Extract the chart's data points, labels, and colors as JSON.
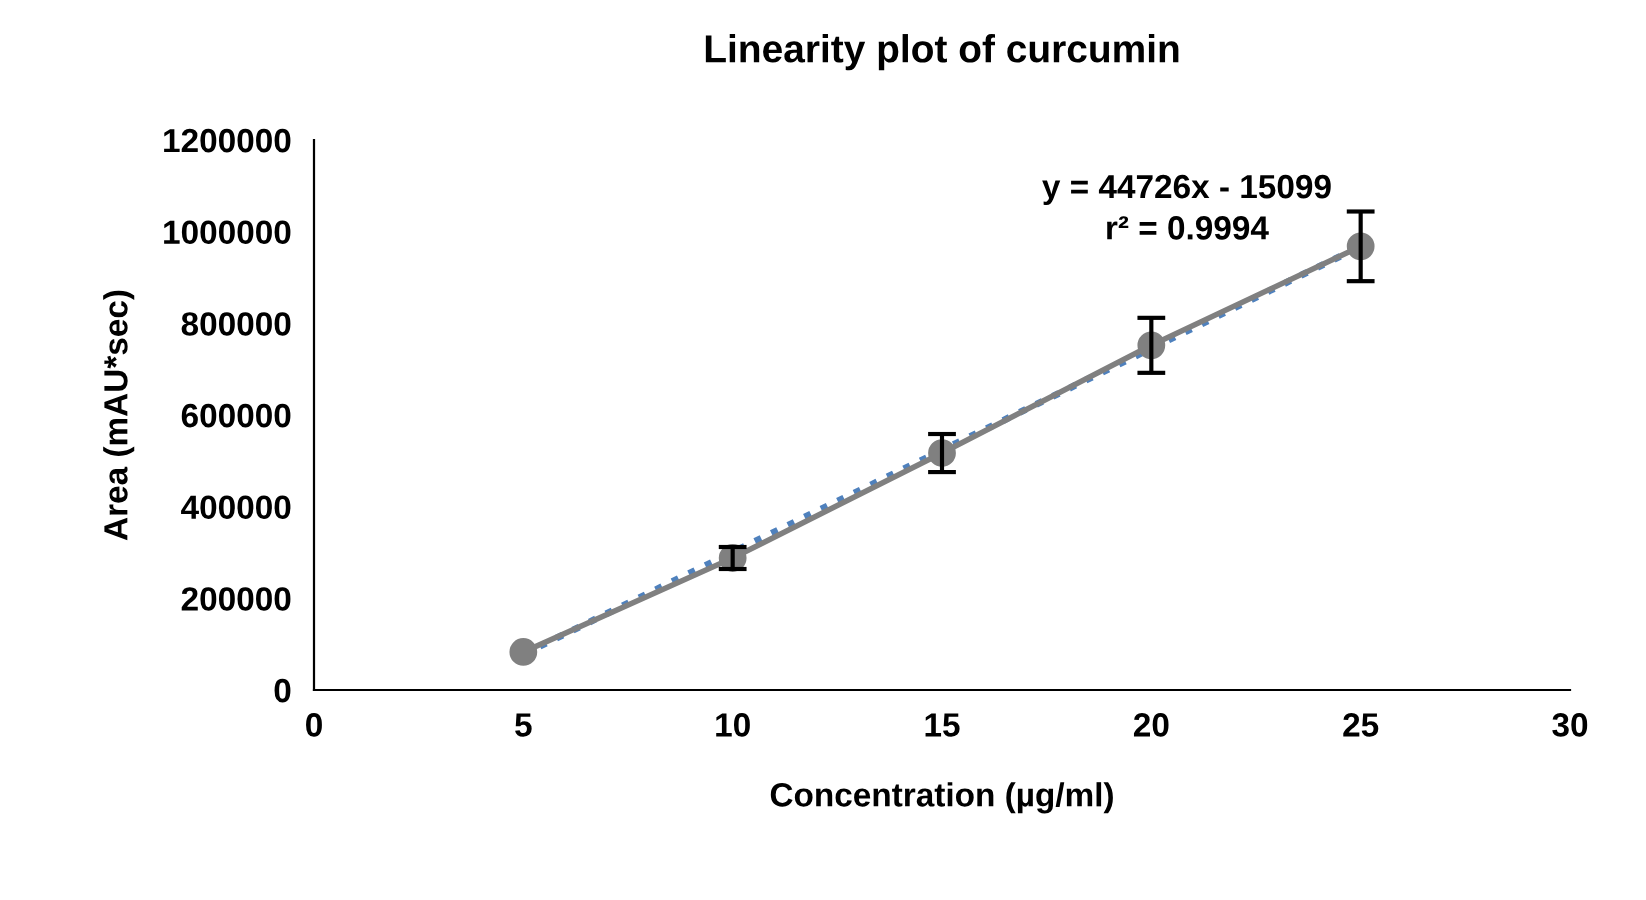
{
  "chart_data": {
    "type": "line",
    "title": "Linearity plot of curcumin",
    "xlabel": "Concentration (µg/ml)",
    "ylabel": "Area (mAU*sec)",
    "x": [
      5,
      10,
      15,
      20,
      25
    ],
    "series": [
      {
        "color": "#808080",
        "marker": "circle",
        "line_style": "solid",
        "values": [
          83000,
          288000,
          517000,
          752000,
          968000
        ],
        "errors": [
          null,
          24000,
          41500,
          60000,
          76000
        ]
      },
      {
        "color": "#4f81bd",
        "marker": "none",
        "line_style": "dotted",
        "x": [
          5,
          25
        ],
        "values": [
          78000,
          968000
        ]
      }
    ],
    "annotations": [
      "y = 44726x - 15099",
      "r² = 0.9994"
    ],
    "xlim": [
      0,
      30
    ],
    "xticks": [
      0,
      5,
      10,
      15,
      20,
      25,
      30
    ],
    "ylim": [
      0,
      1200000
    ],
    "yticks": [
      0,
      200000,
      400000,
      600000,
      800000,
      1000000,
      1200000
    ],
    "grid": false,
    "legend": false
  }
}
